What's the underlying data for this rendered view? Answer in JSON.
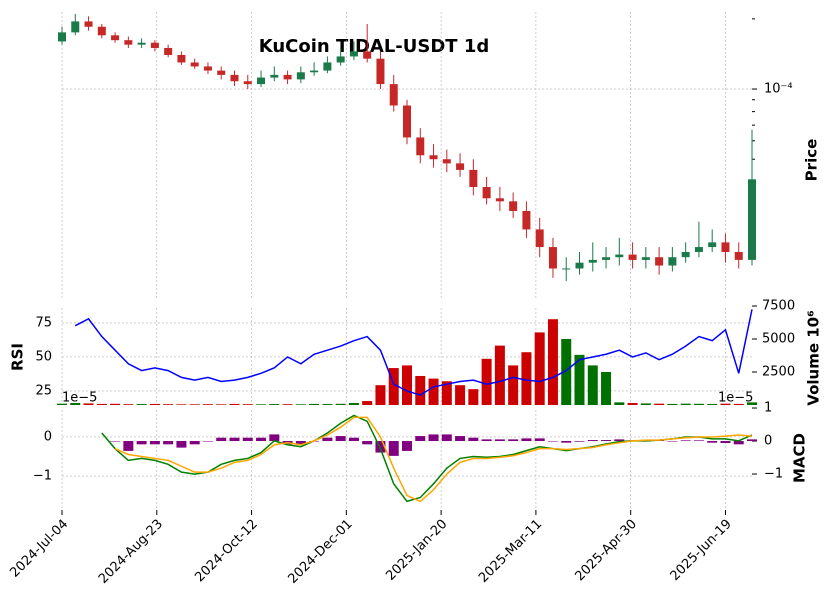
{
  "chart_data": [
    {
      "type": "candlestick",
      "title": "KuCoin TIDAL-USDT 1d",
      "ylabel": "Price",
      "log_scale": true,
      "up_color": "#1a7a4a",
      "down_color": "#c62828",
      "x": [
        "2024-07-04",
        "2024-07-11",
        "2024-07-18",
        "2024-07-25",
        "2024-08-01",
        "2024-08-08",
        "2024-08-15",
        "2024-08-22",
        "2024-08-29",
        "2024-09-05",
        "2024-09-12",
        "2024-09-19",
        "2024-09-26",
        "2024-10-03",
        "2024-10-10",
        "2024-10-17",
        "2024-10-24",
        "2024-10-31",
        "2024-11-07",
        "2024-11-14",
        "2024-11-21",
        "2024-11-28",
        "2024-12-05",
        "2024-12-12",
        "2024-12-19",
        "2024-12-26",
        "2025-01-02",
        "2025-01-09",
        "2025-01-16",
        "2025-01-23",
        "2025-01-30",
        "2025-02-06",
        "2025-02-13",
        "2025-02-20",
        "2025-02-27",
        "2025-03-06",
        "2025-03-13",
        "2025-03-20",
        "2025-03-27",
        "2025-04-03",
        "2025-04-10",
        "2025-04-17",
        "2025-04-24",
        "2025-05-01",
        "2025-05-08",
        "2025-05-15",
        "2025-05-22",
        "2025-05-29",
        "2025-06-05",
        "2025-06-12",
        "2025-06-19",
        "2025-06-26",
        "2025-07-03"
      ],
      "open": [
        0.00016,
        0.000175,
        0.000195,
        0.000185,
        0.00017,
        0.000162,
        0.000155,
        0.000158,
        0.00015,
        0.00014,
        0.00013,
        0.000125,
        0.00012,
        0.000115,
        0.000108,
        0.000105,
        0.000112,
        0.000115,
        0.00011,
        0.000118,
        0.00012,
        0.00013,
        0.000138,
        0.000145,
        0.000135,
        0.000105,
        8.5e-05,
        6.2e-05,
        5.2e-05,
        5e-05,
        4.8e-05,
        4.5e-05,
        3.8e-05,
        3.4e-05,
        3.3e-05,
        3e-05,
        2.5e-05,
        2.1e-05,
        1.7e-05,
        1.7e-05,
        1.8e-05,
        1.85e-05,
        1.9e-05,
        1.95e-05,
        1.85e-05,
        1.9e-05,
        1.75e-05,
        1.9e-05,
        2e-05,
        2.1e-05,
        2.2e-05,
        2e-05,
        1.85e-05
      ],
      "high": [
        0.000185,
        0.00021,
        0.000205,
        0.00019,
        0.000175,
        0.000168,
        0.000165,
        0.000162,
        0.000155,
        0.000145,
        0.000135,
        0.00013,
        0.000125,
        0.00012,
        0.000115,
        0.00012,
        0.000125,
        0.00012,
        0.000125,
        0.00013,
        0.000138,
        0.00015,
        0.00016,
        0.00019,
        0.000145,
        0.000115,
        9e-05,
        6.8e-05,
        5.8e-05,
        5.5e-05,
        5.3e-05,
        5e-05,
        4.2e-05,
        3.8e-05,
        3.6e-05,
        3.3e-05,
        2.8e-05,
        2.3e-05,
        1.9e-05,
        2e-05,
        2.2e-05,
        2.1e-05,
        2.3e-05,
        2.2e-05,
        2.1e-05,
        2.1e-05,
        2.1e-05,
        2.2e-05,
        2.7e-05,
        2.5e-05,
        2.4e-05,
        2.2e-05,
        6.7e-05
      ],
      "low": [
        0.000155,
        0.00017,
        0.000178,
        0.000165,
        0.000158,
        0.00015,
        0.00015,
        0.000145,
        0.000137,
        0.000127,
        0.000122,
        0.000116,
        0.00011,
        0.000103,
        0.0001,
        0.000102,
        0.000108,
        0.000105,
        0.000106,
        0.000114,
        0.000117,
        0.000126,
        0.000133,
        0.00013,
        0.0001,
        8e-05,
        5.8e-05,
        4.8e-05,
        4.6e-05,
        4.4e-05,
        4.2e-05,
        3.5e-05,
        3.2e-05,
        3e-05,
        2.8e-05,
        2.3e-05,
        1.9e-05,
        1.55e-05,
        1.5e-05,
        1.6e-05,
        1.65e-05,
        1.7e-05,
        1.75e-05,
        1.7e-05,
        1.7e-05,
        1.6e-05,
        1.65e-05,
        1.8e-05,
        1.9e-05,
        2e-05,
        1.8e-05,
        1.7e-05,
        1.75e-05
      ],
      "close": [
        0.000175,
        0.000195,
        0.000185,
        0.00017,
        0.000162,
        0.000155,
        0.000158,
        0.00015,
        0.00014,
        0.00013,
        0.000125,
        0.00012,
        0.000115,
        0.000108,
        0.000105,
        0.000112,
        0.000115,
        0.00011,
        0.000118,
        0.00012,
        0.00013,
        0.000138,
        0.000145,
        0.000135,
        0.000105,
        8.5e-05,
        6.2e-05,
        5.2e-05,
        5e-05,
        4.8e-05,
        4.5e-05,
        3.8e-05,
        3.4e-05,
        3.3e-05,
        3e-05,
        2.5e-05,
        2.1e-05,
        1.7e-05,
        1.7e-05,
        1.8e-05,
        1.85e-05,
        1.9e-05,
        1.95e-05,
        1.85e-05,
        1.9e-05,
        1.75e-05,
        1.9e-05,
        2e-05,
        2.1e-05,
        2.2e-05,
        2e-05,
        1.85e-05,
        4.1e-05
      ],
      "ylim": [
        1.27e-05,
        0.000214
      ],
      "yticks": [
        {
          "value": 0.0001,
          "label": "10⁻⁴"
        }
      ],
      "yminorticks": [
        0.0002,
        9e-05,
        8e-05,
        7e-05,
        6e-05,
        5e-05,
        4e-05,
        3e-05,
        2e-05
      ]
    },
    {
      "type": "line",
      "ylabel": "RSI",
      "color": "#0000ff",
      "values": [
        null,
        73,
        78,
        65,
        55,
        45,
        40,
        42,
        40,
        35,
        33,
        35,
        32,
        33,
        35,
        38,
        42,
        50,
        45,
        52,
        55,
        58,
        62,
        65,
        55,
        30,
        25,
        22,
        28,
        30,
        32,
        33,
        30,
        32,
        35,
        33,
        32,
        35,
        40,
        48,
        50,
        52,
        55,
        50,
        53,
        48,
        52,
        58,
        65,
        62,
        70,
        38,
        85
      ],
      "ylim": [
        14.7,
        86
      ],
      "yticks": [
        25,
        50,
        75
      ],
      "bars": {
        "type": "bar",
        "ylabel": "Volume  10⁶",
        "up_color": "#007000",
        "down_color": "#cc0000",
        "values": [
          100,
          150,
          120,
          80,
          90,
          60,
          70,
          80,
          60,
          50,
          50,
          60,
          50,
          80,
          60,
          50,
          70,
          60,
          50,
          80,
          70,
          90,
          150,
          300,
          1500,
          2800,
          3000,
          2200,
          2000,
          1800,
          1500,
          1200,
          3500,
          4500,
          3000,
          4000,
          5500,
          6500,
          5000,
          3800,
          3000,
          2500,
          200,
          150,
          120,
          100,
          80,
          100,
          90,
          80,
          100,
          80,
          200
        ],
        "y2lim": [
          0,
          7350
        ],
        "y2ticks": [
          2500,
          5000,
          7500
        ]
      }
    },
    {
      "type": "macd",
      "ylabel": "MACD",
      "offset_label": "1e−5",
      "macd": {
        "color": "#008000",
        "values": [
          null,
          null,
          null,
          0.1,
          -0.3,
          -0.6,
          -0.55,
          -0.6,
          -0.7,
          -0.9,
          -0.95,
          -0.9,
          -0.7,
          -0.6,
          -0.55,
          -0.4,
          -0.1,
          -0.2,
          -0.25,
          -0.1,
          0.1,
          0.35,
          0.55,
          0.4,
          -0.3,
          -1.2,
          -1.65,
          -1.55,
          -1.2,
          -0.8,
          -0.55,
          -0.5,
          -0.52,
          -0.5,
          -0.45,
          -0.35,
          -0.25,
          -0.3,
          -0.35,
          -0.3,
          -0.25,
          -0.18,
          -0.12,
          -0.1,
          -0.1,
          -0.08,
          -0.05,
          0.0,
          0.0,
          -0.05,
          -0.05,
          -0.1,
          0.05
        ]
      },
      "signal": {
        "color": "#ffa500",
        "values": [
          null,
          null,
          null,
          null,
          -0.3,
          -0.45,
          -0.5,
          -0.55,
          -0.6,
          -0.75,
          -0.9,
          -0.9,
          -0.8,
          -0.65,
          -0.6,
          -0.45,
          -0.2,
          -0.15,
          -0.2,
          -0.1,
          0.05,
          0.25,
          0.5,
          0.5,
          0.0,
          -0.8,
          -1.5,
          -1.65,
          -1.35,
          -0.95,
          -0.65,
          -0.55,
          -0.55,
          -0.52,
          -0.48,
          -0.4,
          -0.3,
          -0.3,
          -0.32,
          -0.3,
          -0.27,
          -0.2,
          -0.15,
          -0.1,
          -0.08,
          -0.08,
          -0.05,
          -0.02,
          0.0,
          0.0,
          0.02,
          0.05,
          0.02
        ]
      },
      "histogram": {
        "color": "#800080",
        "values": [
          null,
          null,
          null,
          null,
          0.0,
          -0.3,
          -0.1,
          -0.1,
          -0.1,
          -0.2,
          -0.1,
          0.0,
          0.1,
          0.1,
          0.1,
          0.1,
          0.2,
          -0.1,
          -0.1,
          0.0,
          0.1,
          0.15,
          0.1,
          -0.1,
          -0.35,
          -0.45,
          -0.3,
          0.15,
          0.2,
          0.2,
          0.15,
          0.1,
          0.05,
          0.05,
          0.05,
          0.08,
          0.08,
          0.0,
          -0.05,
          -0.02,
          0.03,
          0.03,
          0.05,
          0.02,
          0.0,
          0.02,
          0.0,
          0.02,
          0.02,
          -0.05,
          -0.06,
          -0.1,
          0.05
        ]
      },
      "ylim": [
        -1.87,
        0.69
      ],
      "yticks": [
        0,
        {
          "value": -1,
          "label": "−1"
        }
      ],
      "y2lim": [
        -2.09,
        0.94
      ],
      "y2ticks": [
        1,
        0,
        {
          "value": -1,
          "label": "−1"
        }
      ],
      "xlim": [
        "2024-07-04",
        "2025-07-03"
      ],
      "xticks": [
        {
          "value": "2024-07-04",
          "label": "2024-Jul-04"
        },
        {
          "value": "2024-08-23",
          "label": "2024-Aug-23"
        },
        {
          "value": "2024-10-12",
          "label": "2024-Oct-12"
        },
        {
          "value": "2024-12-01",
          "label": "2024-Dec-01"
        },
        {
          "value": "2025-01-20",
          "label": "2025-Jan-20"
        },
        {
          "value": "2025-03-11",
          "label": "2025-Mar-11"
        },
        {
          "value": "2025-04-30",
          "label": "2025-Apr-30"
        },
        {
          "value": "2025-06-19",
          "label": "2025-Jun-19"
        }
      ]
    }
  ]
}
